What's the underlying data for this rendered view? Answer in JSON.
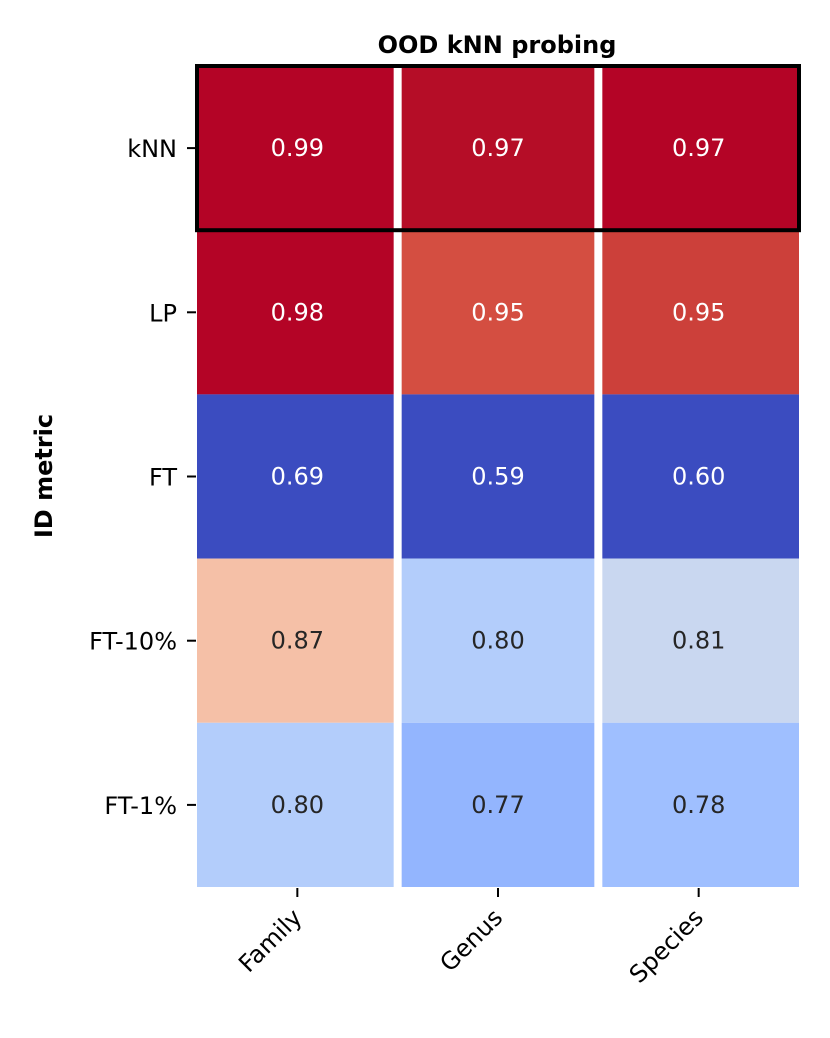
{
  "chart_data": {
    "type": "heatmap",
    "title": "OOD kNN probing",
    "xlabel": "",
    "ylabel": "ID metric",
    "columns": [
      "Family",
      "Genus",
      "Species"
    ],
    "rows": [
      "kNN",
      "LP",
      "FT",
      "FT-10%",
      "FT-1%"
    ],
    "values": [
      [
        0.99,
        0.97,
        0.97
      ],
      [
        0.98,
        0.95,
        0.95
      ],
      [
        0.69,
        0.59,
        0.6
      ],
      [
        0.87,
        0.8,
        0.81
      ],
      [
        0.8,
        0.77,
        0.78
      ]
    ],
    "value_labels": [
      [
        "0.99",
        "0.97",
        "0.97"
      ],
      [
        "0.98",
        "0.95",
        "0.95"
      ],
      [
        "0.69",
        "0.59",
        "0.60"
      ],
      [
        "0.87",
        "0.80",
        "0.81"
      ],
      [
        "0.80",
        "0.77",
        "0.78"
      ]
    ],
    "colormap": "coolwarm",
    "colorbar": false,
    "highlighted_row": "kNN",
    "cell_colors": [
      [
        "#b40426",
        "#b50d27",
        "#b40426"
      ],
      [
        "#b40426",
        "#d44e41",
        "#cc403a"
      ],
      [
        "#3b4cc0",
        "#3b4cc0",
        "#3b4cc0"
      ],
      [
        "#f5c0a7",
        "#b3cdfb",
        "#c9d7f0"
      ],
      [
        "#b3cdfb",
        "#93b5fe",
        "#9fbfff"
      ]
    ],
    "text_colors": [
      [
        "#ffffff",
        "#ffffff",
        "#ffffff"
      ],
      [
        "#ffffff",
        "#ffffff",
        "#ffffff"
      ],
      [
        "#ffffff",
        "#ffffff",
        "#ffffff"
      ],
      [
        "#262626",
        "#262626",
        "#262626"
      ],
      [
        "#262626",
        "#262626",
        "#262626"
      ]
    ],
    "column_separator_color": "#ffffff",
    "highlight_border_color": "#000000"
  }
}
